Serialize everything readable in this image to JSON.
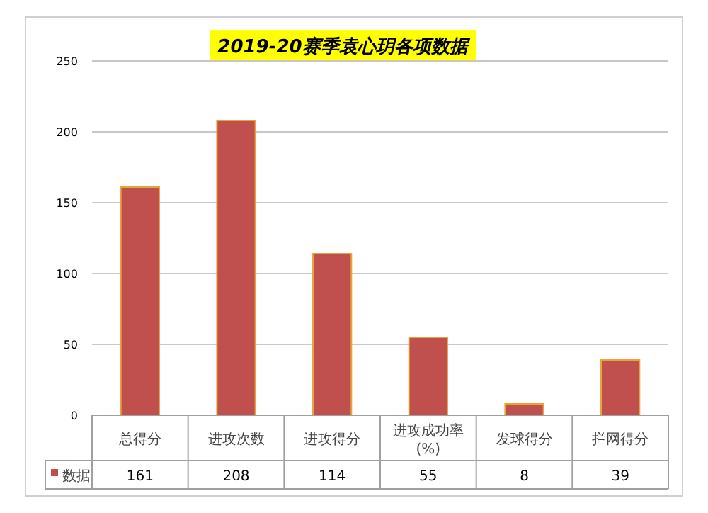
{
  "chart_data": {
    "type": "bar",
    "title": "2019-20赛季袁心玥各项数据",
    "categories": [
      "总得分",
      "进攻次数",
      "进攻得分",
      "进攻成功率(%)",
      "发球得分",
      "拦网得分"
    ],
    "series": [
      {
        "name": "数据",
        "color": "#c0504d",
        "values": [
          161,
          208,
          114,
          55,
          8,
          39
        ]
      }
    ],
    "ylim": [
      0,
      250
    ],
    "yticks": [
      0,
      50,
      100,
      150,
      200,
      250
    ],
    "grid": "y",
    "legend": "bottom",
    "data_labels": true
  }
}
